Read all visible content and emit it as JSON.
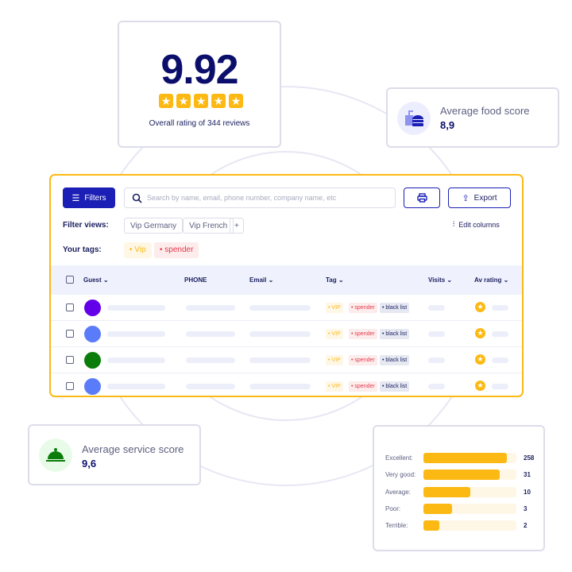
{
  "overall": {
    "score": "9.92",
    "stars": 5,
    "caption": "Overall rating of 344 reviews"
  },
  "food": {
    "label": "Average food score",
    "value": "8,9",
    "icon": "drink-burger-icon"
  },
  "service": {
    "label": "Average service score",
    "value": "9,6",
    "icon": "service-bell-icon"
  },
  "toolbar": {
    "filters_label": "Filters",
    "search_placeholder": "Search by name, email, phone number, company name, etc",
    "export_label": "Export",
    "edit_columns_label": "Edit columns"
  },
  "filter_views": {
    "label": "Filter views:",
    "items": [
      "Vip Germany",
      "Vip French"
    ],
    "add": "+"
  },
  "your_tags": {
    "label": "Your tags:",
    "items": [
      "Vip",
      "spender"
    ]
  },
  "table": {
    "headers": [
      "Guest",
      "PHONE",
      "Email",
      "Tag",
      "Visits",
      "Av rating"
    ],
    "rows": [
      {
        "avatar_color": "#6200ea",
        "tags": [
          "VIP",
          "spender",
          "black list"
        ]
      },
      {
        "avatar_color": "#5b7cfa",
        "tags": [
          "VIP",
          "spender",
          "black list"
        ]
      },
      {
        "avatar_color": "#0a7d0a",
        "tags": [
          "VIP",
          "spender",
          "black list"
        ]
      },
      {
        "avatar_color": "#5b7cfa",
        "tags": [
          "VIP",
          "spender",
          "black list"
        ]
      }
    ]
  },
  "reviews": [
    {
      "label": "Excellent:",
      "count": "258",
      "fill_pct": 90
    },
    {
      "label": "Very good:",
      "count": "31",
      "fill_pct": 82
    },
    {
      "label": "Average:",
      "count": "10",
      "fill_pct": 50
    },
    {
      "label": "Poor:",
      "count": "3",
      "fill_pct": 31
    },
    {
      "label": "Terrible:",
      "count": "2",
      "fill_pct": 17
    }
  ],
  "colors": {
    "accent": "#1b1fb5",
    "brand_yellow": "#fdb913",
    "navy": "#0b0f6b"
  }
}
